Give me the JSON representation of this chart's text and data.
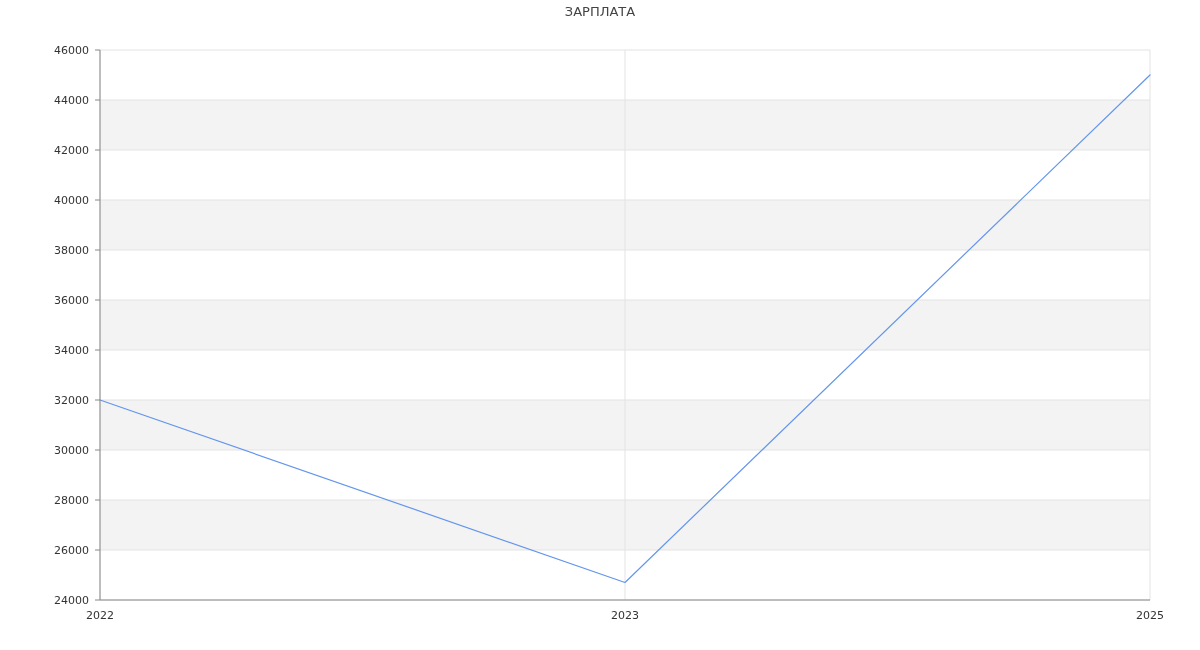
{
  "chart_data": {
    "type": "line",
    "title": "ЗАРПЛАТА",
    "categories": [
      "2022",
      "2023",
      "2025"
    ],
    "series": [
      {
        "color": "#6495ed",
        "values": [
          32000,
          24700,
          45000
        ]
      }
    ],
    "ylim": [
      24000,
      46000
    ],
    "yticks": [
      24000,
      26000,
      28000,
      30000,
      32000,
      34000,
      36000,
      38000,
      40000,
      42000,
      44000,
      46000
    ],
    "grid": true
  }
}
